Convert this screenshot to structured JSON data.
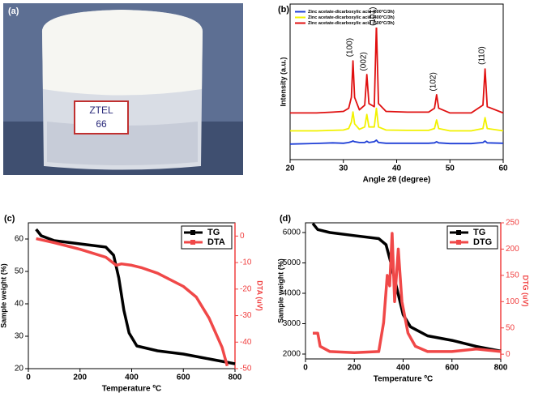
{
  "photo": {
    "label": "(a)",
    "tag": [
      "ZTEL",
      "66"
    ]
  },
  "chart_data": [
    {
      "type": "line",
      "label": "(b)",
      "xlabel": "Angle 2θ (degree)",
      "ylabel": "Intensity (a.u.)",
      "x": [
        20,
        25,
        28,
        30,
        31,
        31.5,
        31.8,
        32.1,
        33,
        34,
        34.4,
        34.8,
        35.8,
        36.2,
        36.6,
        38,
        42,
        46,
        47.1,
        47.5,
        47.9,
        50,
        54,
        56.2,
        56.6,
        57,
        60
      ],
      "xlim": [
        20,
        60
      ],
      "xticks": [
        20,
        30,
        40,
        50,
        60
      ],
      "ylim": [
        0,
        100
      ],
      "legend": "upper left",
      "series": [
        {
          "name": "Zinc acetate-dicarboxylic acid (300°C/3h)",
          "color": "#1f3fd6",
          "values": [
            10,
            10.4,
            10.8,
            10.5,
            11,
            11.5,
            12,
            11.5,
            11,
            11,
            11.8,
            11,
            11.5,
            12.5,
            11,
            10.5,
            10.5,
            10.5,
            10.8,
            11.5,
            10.8,
            10.3,
            10.3,
            11,
            12,
            10.8,
            10.5
          ]
        },
        {
          "name": "Zinc acetate-dicarboxylic acid (400°C/3h)",
          "color": "#f2f200",
          "values": [
            18.5,
            18.5,
            18.8,
            19,
            20,
            24,
            30.7,
            23,
            19.5,
            21,
            29,
            21,
            21,
            33,
            21,
            19,
            18.8,
            18.8,
            20,
            25.5,
            20,
            18.5,
            18.5,
            20,
            27,
            20,
            18.5
          ]
        },
        {
          "name": "Zinc acetate-dicarboxylic acid (500°C/3h)",
          "color": "#e01010",
          "values": [
            30,
            30,
            30.5,
            31,
            33,
            40,
            63.5,
            40,
            32,
            35,
            54.7,
            36,
            34,
            87,
            36,
            31,
            30.5,
            30.5,
            33,
            41.7,
            33,
            30,
            30,
            35,
            58.3,
            34,
            30
          ]
        }
      ],
      "annotations": [
        {
          "text": "(100)",
          "x": 31.2,
          "y": 66
        },
        {
          "text": "(002)",
          "x": 33.8,
          "y": 57
        },
        {
          "text": "(101)",
          "x": 35.6,
          "y": 86
        },
        {
          "text": "(102)",
          "x": 46.9,
          "y": 44
        },
        {
          "text": "(110)",
          "x": 56.0,
          "y": 61
        }
      ]
    },
    {
      "type": "line",
      "label": "(c)",
      "xlabel": "Temperature ºC",
      "ylabel": "Sample weight (%)",
      "y2label": "DTA (uV)",
      "x": [
        30,
        50,
        100,
        200,
        300,
        330,
        350,
        370,
        390,
        420,
        500,
        600,
        700,
        800
      ],
      "xlim": [
        0,
        800
      ],
      "xticks": [
        0,
        200,
        400,
        600,
        800
      ],
      "ylim": [
        20,
        65
      ],
      "yticks": [
        20,
        30,
        40,
        50,
        60
      ],
      "y2lim": [
        -50,
        5
      ],
      "y2ticks": [
        0,
        -10,
        -20,
        -30,
        -40,
        -50
      ],
      "y2color": "#f04040",
      "legend": "upper right",
      "series": [
        {
          "name": "TG",
          "color": "#000000",
          "values": [
            63,
            61,
            59.5,
            58.5,
            57.5,
            55,
            48,
            38,
            31,
            27,
            25.5,
            24.5,
            23,
            21.5
          ]
        },
        {
          "name": "DTA",
          "color": "#f04848",
          "axis": "y2",
          "x": [
            30,
            100,
            200,
            300,
            340,
            360,
            400,
            440,
            500,
            600,
            650,
            700,
            750,
            770
          ],
          "values": [
            -1,
            -2.5,
            -5,
            -8,
            -11,
            -10.5,
            -11,
            -12,
            -14,
            -19,
            -23,
            -31,
            -42,
            -49
          ]
        }
      ]
    },
    {
      "type": "line",
      "label": "(d)",
      "xlabel": "Temperature ºC",
      "ylabel": "Sample weight (%)",
      "y2label": "DTG (uV)",
      "x": [
        30,
        50,
        100,
        200,
        300,
        330,
        350,
        370,
        400,
        430,
        500,
        600,
        700,
        800
      ],
      "xlim": [
        0,
        800
      ],
      "xticks": [
        0,
        200,
        400,
        600,
        800
      ],
      "ylim": [
        1840,
        6320
      ],
      "yticks": [
        2000,
        3000,
        4000,
        5000,
        6000
      ],
      "y2lim": [
        -9,
        250
      ],
      "y2ticks": [
        0,
        50,
        100,
        150,
        200,
        250
      ],
      "y2color": "#f04040",
      "legend": "upper right",
      "series": [
        {
          "name": "TG",
          "color": "#000000",
          "values": [
            6300,
            6100,
            6000,
            5900,
            5800,
            5600,
            5000,
            4300,
            3300,
            2900,
            2600,
            2450,
            2250,
            2100
          ]
        },
        {
          "name": "DTG",
          "color": "#f04848",
          "axis": "y2",
          "x": [
            30,
            50,
            60,
            100,
            200,
            300,
            320,
            335,
            345,
            355,
            365,
            380,
            395,
            420,
            450,
            500,
            600,
            700,
            800
          ],
          "values": [
            40,
            40,
            15,
            5,
            3,
            5,
            60,
            150,
            130,
            230,
            100,
            200,
            100,
            40,
            15,
            5,
            5,
            10,
            5
          ]
        }
      ]
    }
  ]
}
